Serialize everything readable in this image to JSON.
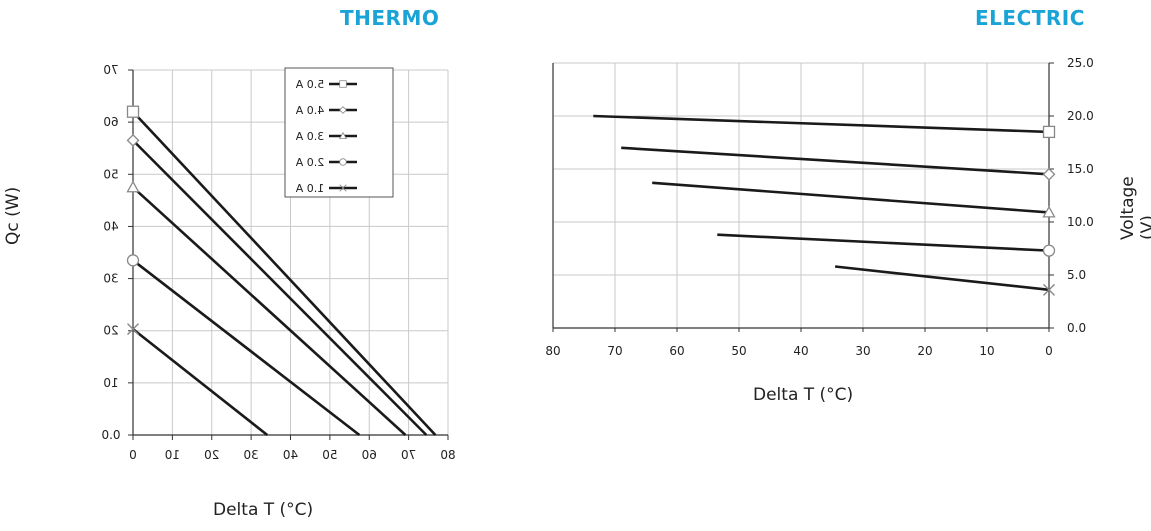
{
  "page": {
    "left_title": "THERMO",
    "right_title": "ELECTRIC",
    "accent_color": "#1aa3d6"
  },
  "chart_data": [
    {
      "type": "line",
      "title": "THERMO",
      "xlabel": "Delta T (°C)",
      "ylabel": "Qc (W)",
      "xlim": [
        0,
        80
      ],
      "ylim": [
        0,
        70
      ],
      "x_ticks": [
        "0",
        "10",
        "20",
        "30",
        "40",
        "50",
        "60",
        "70",
        "80"
      ],
      "y_ticks": [
        "0.0",
        "10",
        "20",
        "30",
        "40",
        "50",
        "60",
        "70"
      ],
      "grid": true,
      "legend_position": "top-right",
      "series": [
        {
          "name": "5.0 A",
          "marker": "square",
          "points": [
            [
              0,
              62
            ],
            [
              76.8,
              0
            ]
          ]
        },
        {
          "name": "4.0 A",
          "marker": "diamond",
          "points": [
            [
              0,
              56.5
            ],
            [
              74.5,
              0
            ]
          ]
        },
        {
          "name": "3.0 A",
          "marker": "triangle",
          "points": [
            [
              0,
              47.5
            ],
            [
              69.2,
              0
            ]
          ]
        },
        {
          "name": "2.0 A",
          "marker": "circle",
          "points": [
            [
              0,
              33.5
            ],
            [
              57.5,
              0
            ]
          ]
        },
        {
          "name": "1.0 A",
          "marker": "x",
          "points": [
            [
              0,
              20.3
            ],
            [
              34.1,
              0
            ]
          ]
        }
      ]
    },
    {
      "type": "line",
      "title": "ELECTRIC",
      "xlabel": "Delta T (°C)",
      "ylabel": "Voltage (V)",
      "xlim": [
        80,
        0
      ],
      "ylim": [
        0,
        25
      ],
      "x_ticks": [
        "80",
        "70",
        "60",
        "50",
        "40",
        "30",
        "20",
        "10",
        "0"
      ],
      "y_ticks": [
        "0.0",
        "5.0",
        "10.0",
        "15.0",
        "20.0",
        "25.0"
      ],
      "grid": true,
      "series": [
        {
          "name": "5.0 A",
          "marker": "square",
          "points": [
            [
              73.5,
              20
            ],
            [
              0,
              18.5
            ]
          ]
        },
        {
          "name": "4.0 A",
          "marker": "diamond",
          "points": [
            [
              69,
              17
            ],
            [
              0,
              14.5
            ]
          ]
        },
        {
          "name": "3.0 A",
          "marker": "triangle",
          "points": [
            [
              64,
              13.7
            ],
            [
              0,
              10.9
            ]
          ]
        },
        {
          "name": "2.0 A",
          "marker": "circle",
          "points": [
            [
              53.5,
              8.8
            ],
            [
              0,
              7.3
            ]
          ]
        },
        {
          "name": "1.0 A",
          "marker": "x",
          "points": [
            [
              34.5,
              5.8
            ],
            [
              0,
              3.6
            ]
          ]
        }
      ]
    }
  ]
}
